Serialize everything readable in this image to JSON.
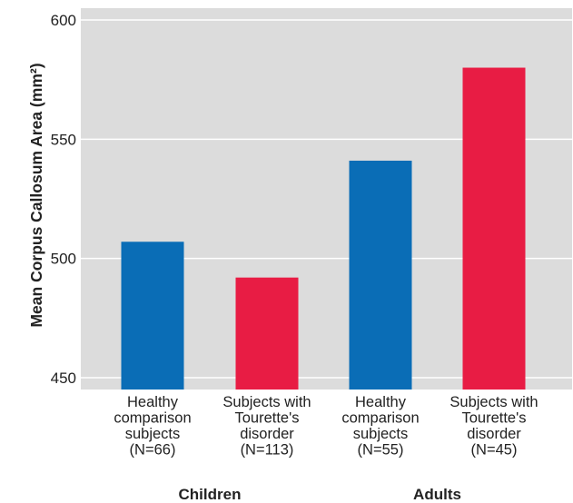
{
  "chart_data": {
    "type": "bar",
    "ylabel": "Mean Corpus Callosum Area (mm²)",
    "ylim": [
      450,
      600
    ],
    "yticks": [
      450,
      500,
      550,
      600
    ],
    "grid": true,
    "categories": [
      [
        "Healthy",
        "comparison",
        "subjects",
        "(N=66)"
      ],
      [
        "Subjects with",
        "Tourette's",
        "disorder",
        "(N=113)"
      ],
      [
        "Healthy",
        "comparison",
        "subjects",
        "(N=55)"
      ],
      [
        "Subjects with",
        "Tourette's",
        "disorder",
        "(N=45)"
      ]
    ],
    "values": [
      507,
      492,
      541,
      580
    ],
    "bar_colors": [
      "#0a6db6",
      "#e81c44",
      "#0a6db6",
      "#e81c44"
    ],
    "groups": [
      {
        "label": "Children",
        "bars": [
          0,
          1
        ]
      },
      {
        "label": "Adults",
        "bars": [
          2,
          3
        ]
      }
    ],
    "colors": {
      "plot_background": "#dcdcdc",
      "gridline": "#ffffff",
      "healthy": "#0a6db6",
      "tourette": "#e81c44"
    }
  }
}
